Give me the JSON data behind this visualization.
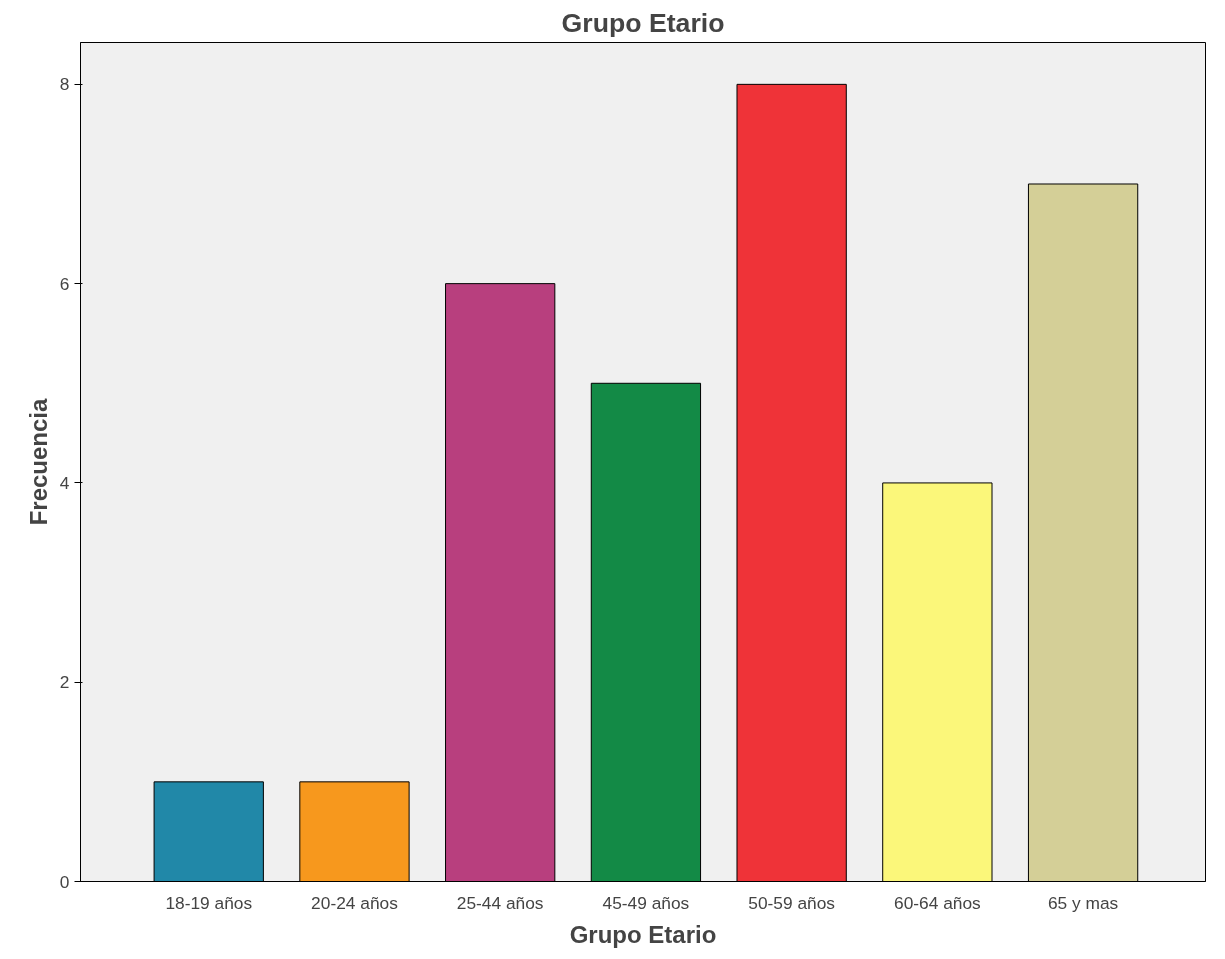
{
  "chart_data": {
    "type": "bar",
    "title": "Grupo Etario",
    "xlabel": "Grupo Etario",
    "ylabel": "Frecuencia",
    "categories": [
      "18-19 años",
      "20-24 años",
      "25-44 años",
      "45-49 años",
      "50-59 años",
      "60-64 años",
      "65 y mas"
    ],
    "values": [
      1,
      1,
      6,
      5,
      8,
      4,
      7
    ],
    "colors": [
      "#2188a8",
      "#f7981d",
      "#b83f7e",
      "#138a46",
      "#ef3338",
      "#fbf77a",
      "#d4cf97"
    ],
    "ylim": [
      0,
      8.42
    ],
    "yticks": [
      0,
      2,
      4,
      6,
      8
    ],
    "grid": false
  }
}
